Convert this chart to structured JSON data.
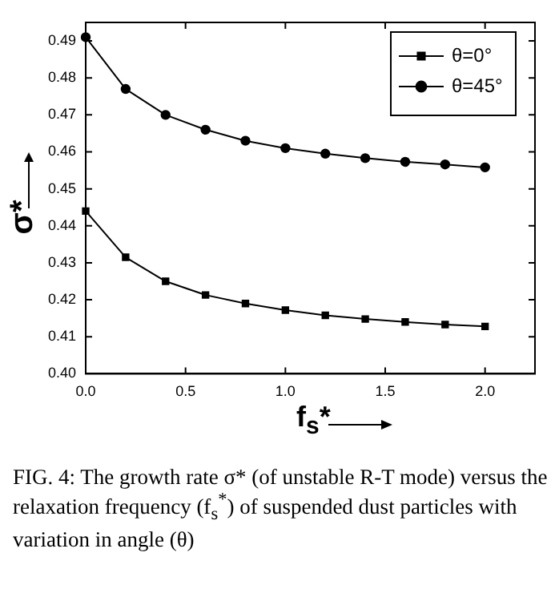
{
  "chart_data": {
    "type": "line",
    "xlabel": "f$_{s}$*",
    "ylabel": "σ*",
    "x": [
      0,
      0.2,
      0.4,
      0.6,
      0.8,
      1.0,
      1.2,
      1.4,
      1.6,
      1.8,
      2.0
    ],
    "series": [
      {
        "name": "θ=0°",
        "color": "#000000",
        "marker": "square",
        "values": [
          0.444,
          0.4315,
          0.425,
          0.4213,
          0.419,
          0.4172,
          0.4158,
          0.4148,
          0.414,
          0.4133,
          0.4128
        ]
      },
      {
        "name": "θ=45°",
        "color": "#000000",
        "marker": "circle",
        "values": [
          0.491,
          0.477,
          0.47,
          0.466,
          0.463,
          0.461,
          0.4595,
          0.4583,
          0.4573,
          0.4566,
          0.4558
        ]
      }
    ],
    "xlim": [
      0,
      2.25
    ],
    "xticks": [
      {
        "value": 0,
        "label": "0.0"
      },
      {
        "value": 0.5,
        "label": "0.5"
      },
      {
        "value": 1,
        "label": "1.0"
      },
      {
        "value": 1.5,
        "label": "1.5"
      },
      {
        "value": 2,
        "label": "2.0"
      }
    ],
    "ylim": [
      0.4,
      0.495
    ],
    "yticks": [
      {
        "value": 0.4,
        "label": "0.40"
      },
      0.41,
      0.42,
      0.43,
      0.44,
      0.45,
      0.46,
      0.47,
      0.48,
      0.49
    ],
    "grid": false,
    "legend": "top right",
    "line_style": "solid",
    "annotations": [
      "FIG. 4: The growth rate σ* (of unstable R-T mode) versus the relaxation frequency (f$_{s}$$^{*}$) of suspended dust particles with variation in angle (θ)"
    ]
  }
}
